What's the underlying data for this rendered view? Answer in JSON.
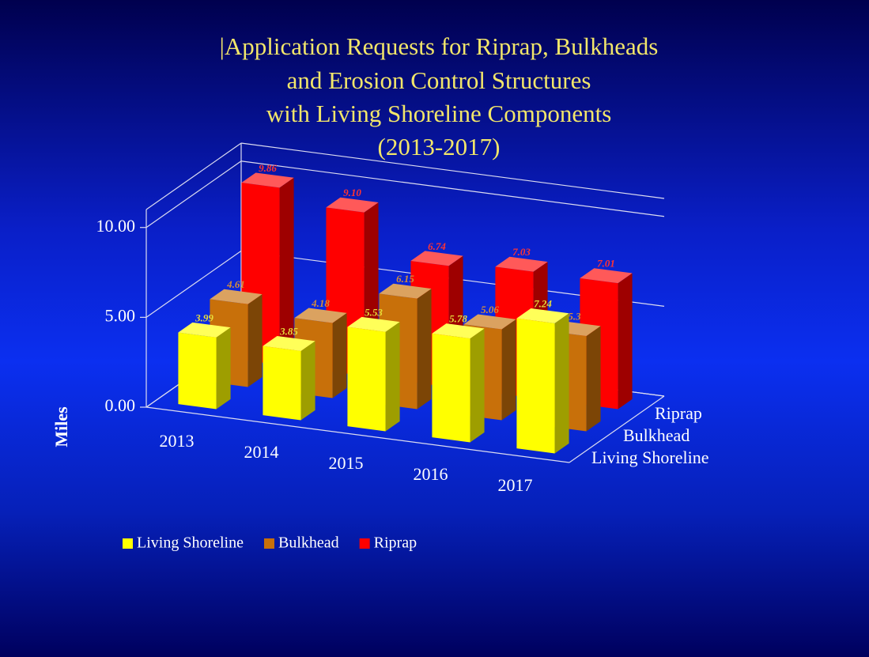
{
  "chart_data": {
    "type": "bar3d",
    "title": [
      "|Application Requests for Riprap, Bulkheads",
      "and Erosion Control Structures",
      "with Living Shoreline Components",
      "(2013-2017)"
    ],
    "y_label": "Miles",
    "categories": [
      "2013",
      "2014",
      "2015",
      "2016",
      "2017"
    ],
    "series": [
      {
        "name": "Living Shoreline",
        "color": "#ffff00",
        "values": [
          3.99,
          3.85,
          5.53,
          5.78,
          7.24
        ],
        "value_labels": [
          "3.99",
          "3.85",
          "5.53",
          "5.78",
          "7.24"
        ]
      },
      {
        "name": "Bulkhead",
        "color": "#c8700a",
        "values": [
          4.61,
          4.18,
          6.15,
          5.06,
          5.3
        ],
        "value_labels": [
          "4.61",
          "4.18",
          "6.15",
          "5.06",
          "5.3"
        ]
      },
      {
        "name": "Riprap",
        "color": "#ff0000",
        "values": [
          9.86,
          9.1,
          6.74,
          7.03,
          7.01
        ],
        "value_labels": [
          "9.86",
          "9.10",
          "6.74",
          "7.03",
          "7.01"
        ]
      }
    ],
    "ylim": [
      0,
      11
    ],
    "yticks": [
      {
        "value": 0,
        "label": "0.00"
      },
      {
        "value": 5,
        "label": "5.00"
      },
      {
        "value": 10,
        "label": "10.00"
      }
    ],
    "grid": true,
    "legend": "bottom-left"
  }
}
